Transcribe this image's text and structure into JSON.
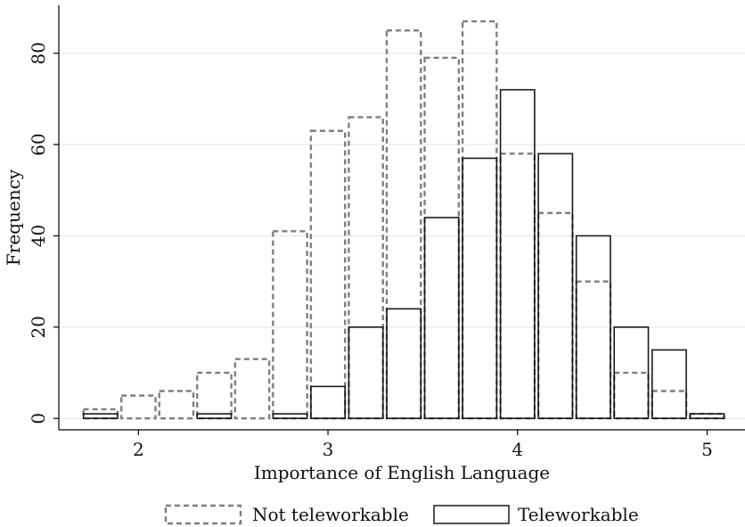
{
  "chart_data": {
    "type": "bar",
    "title": "",
    "xlabel": "Importance of English Language",
    "ylabel": "Frequency",
    "xlim": [
      1.58,
      5.2
    ],
    "ylim": [
      -2.5,
      90.5
    ],
    "xticks": [
      "2",
      "3",
      "4",
      "5"
    ],
    "yticks": [
      "0",
      "20",
      "40",
      "60",
      "80"
    ],
    "grid": true,
    "legend_position": "bottom",
    "bar_width": 0.18,
    "series": [
      {
        "name": "Not teleworkable",
        "style": "dashed",
        "color": "#7f7f7f",
        "points": [
          {
            "x": 1.8,
            "y": 2
          },
          {
            "x": 2.0,
            "y": 5
          },
          {
            "x": 2.2,
            "y": 6
          },
          {
            "x": 2.4,
            "y": 10
          },
          {
            "x": 2.6,
            "y": 13
          },
          {
            "x": 2.8,
            "y": 41
          },
          {
            "x": 3.0,
            "y": 63
          },
          {
            "x": 3.2,
            "y": 66
          },
          {
            "x": 3.4,
            "y": 85
          },
          {
            "x": 3.6,
            "y": 79
          },
          {
            "x": 3.8,
            "y": 87
          },
          {
            "x": 4.0,
            "y": 58
          },
          {
            "x": 4.2,
            "y": 45
          },
          {
            "x": 4.4,
            "y": 30
          },
          {
            "x": 4.6,
            "y": 10
          },
          {
            "x": 4.8,
            "y": 6
          },
          {
            "x": 5.0,
            "y": 1
          }
        ]
      },
      {
        "name": "Teleworkable",
        "style": "solid",
        "color": "#1a1a1a",
        "points": [
          {
            "x": 1.8,
            "y": 1
          },
          {
            "x": 2.4,
            "y": 1
          },
          {
            "x": 2.8,
            "y": 1
          },
          {
            "x": 3.0,
            "y": 7
          },
          {
            "x": 3.2,
            "y": 20
          },
          {
            "x": 3.4,
            "y": 24
          },
          {
            "x": 3.6,
            "y": 44
          },
          {
            "x": 3.8,
            "y": 57
          },
          {
            "x": 4.0,
            "y": 72
          },
          {
            "x": 4.2,
            "y": 58
          },
          {
            "x": 4.4,
            "y": 40
          },
          {
            "x": 4.6,
            "y": 20
          },
          {
            "x": 4.8,
            "y": 15
          },
          {
            "x": 5.0,
            "y": 1
          }
        ]
      }
    ]
  }
}
